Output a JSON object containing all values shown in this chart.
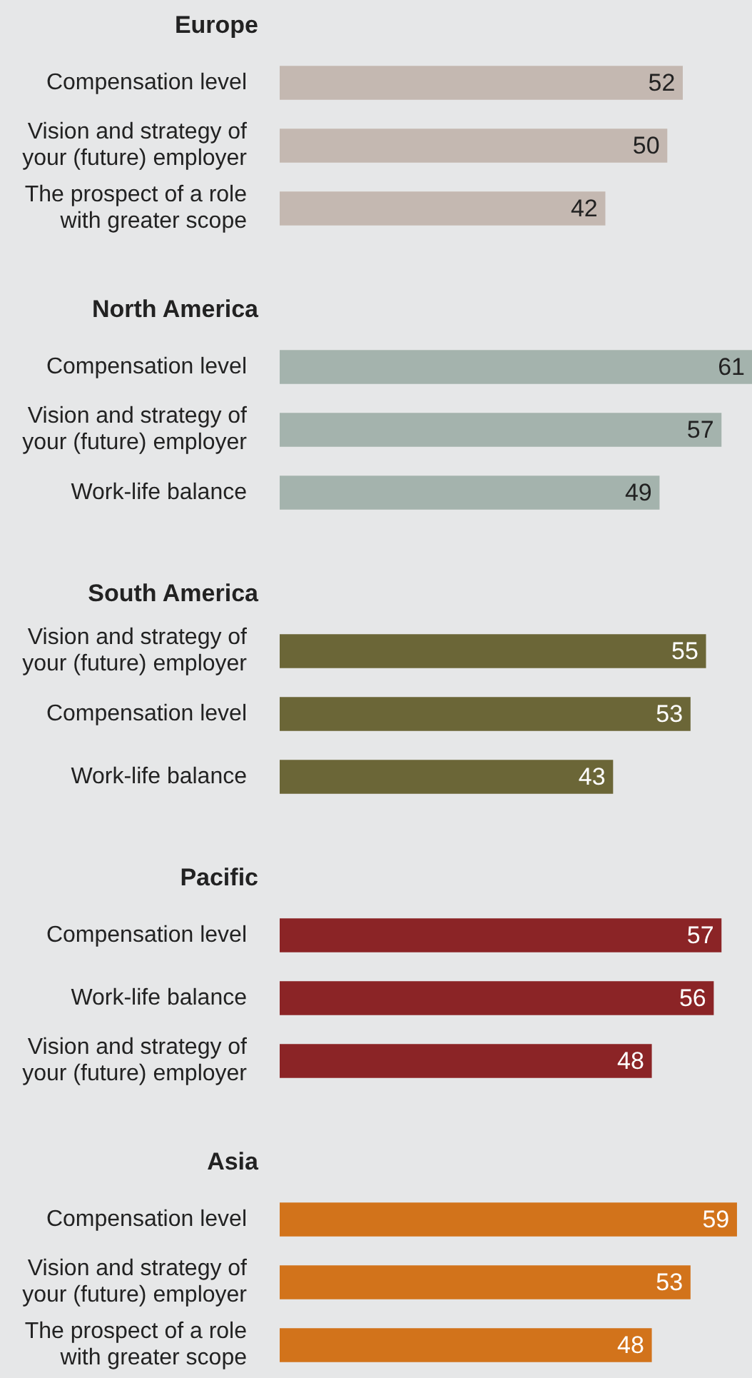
{
  "chart_data": [
    {
      "type": "bar",
      "orientation": "horizontal",
      "title": "Europe",
      "categories": [
        "Compensation level",
        "Vision and strategy of your (future) employer",
        "The prospect of a role with greater scope"
      ],
      "values": [
        52,
        50,
        42
      ],
      "color": "#c4b8b1",
      "data_labels": true,
      "legend": false
    },
    {
      "type": "bar",
      "orientation": "horizontal",
      "title": "North America",
      "categories": [
        "Compensation level",
        "Vision and strategy of your (future) employer",
        "Work-life balance"
      ],
      "values": [
        61,
        57,
        49
      ],
      "color": "#a4b3ad",
      "data_labels": true,
      "legend": false
    },
    {
      "type": "bar",
      "orientation": "horizontal",
      "title": "South America",
      "categories": [
        "Vision and strategy of your (future) employer",
        "Compensation level",
        "Work-life balance"
      ],
      "values": [
        55,
        53,
        43
      ],
      "color": "#6b6637",
      "data_labels": true,
      "legend": false
    },
    {
      "type": "bar",
      "orientation": "horizontal",
      "title": "Pacific",
      "categories": [
        "Compensation level",
        "Work-life balance",
        "Vision and strategy of your (future) employer"
      ],
      "values": [
        57,
        56,
        48
      ],
      "color": "#8b2426",
      "data_labels": true,
      "legend": false
    },
    {
      "type": "bar",
      "orientation": "horizontal",
      "title": "Asia",
      "categories": [
        "Compensation level",
        "Vision and strategy of your (future) employer",
        "The prospect of a role with greater scope"
      ],
      "values": [
        59,
        53,
        48
      ],
      "color": "#d2731b",
      "data_labels": true,
      "legend": false
    }
  ]
}
